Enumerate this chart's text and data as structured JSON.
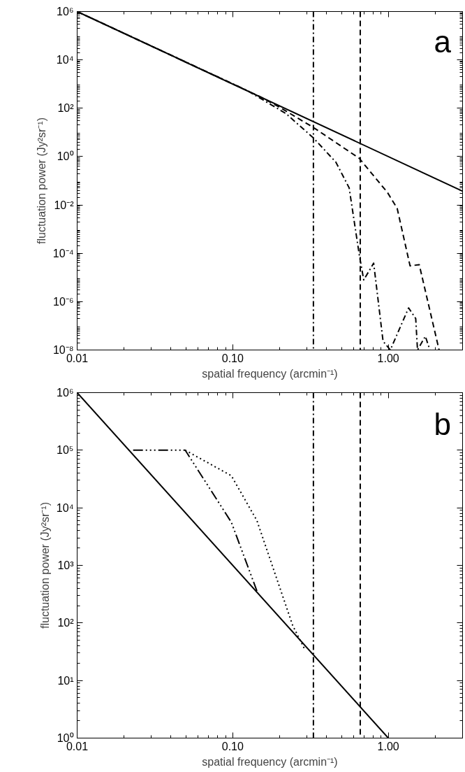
{
  "chart_data": [
    {
      "type": "line",
      "xlabel": "spatial frequency (arcmin⁻¹)",
      "ylabel": "fluctuation power (Jy²sr⁻¹)",
      "annotations": [
        "a"
      ],
      "log": "xy",
      "grid": false,
      "xlim": [
        0.01,
        3
      ],
      "ylim": [
        1e-08,
        1000000.0
      ],
      "xticks": [
        {
          "value": 0.01,
          "label": "0.01"
        },
        {
          "value": 0.1,
          "label": "0.10"
        },
        {
          "value": 1,
          "label": "1.00"
        }
      ],
      "yticks": [
        {
          "value": 1e-08,
          "label": "10⁻⁸"
        },
        {
          "value": 1e-06,
          "label": "10⁻⁶"
        },
        {
          "value": 0.0001,
          "label": "10⁻⁴"
        },
        {
          "value": 0.01,
          "label": "10⁻²"
        },
        {
          "value": 1,
          "label": "10⁰"
        },
        {
          "value": 100,
          "label": "10²"
        },
        {
          "value": 10000,
          "label": "10⁴"
        },
        {
          "value": 1000000,
          "label": "10⁶"
        }
      ],
      "ref_lines": [
        {
          "axis": "x",
          "value": 0.33,
          "color": "#000000",
          "line_style": "dashdot"
        },
        {
          "axis": "x",
          "value": 0.66,
          "color": "#000000",
          "line_style": "dashed"
        }
      ],
      "series": [
        {
          "color": "#000000",
          "line_style": "solid",
          "x": [
            0.01,
            3
          ],
          "values": [
            1000000,
            0.037
          ]
        },
        {
          "color": "#000000",
          "line_style": "dashed",
          "x": [
            0.01,
            0.15,
            0.2,
            0.33,
            0.65,
            0.99,
            1.14,
            1.38,
            1.58,
            2.12
          ],
          "values": [
            1000000,
            300,
            110,
            16,
            0.85,
            0.032,
            0.0072,
            3e-05,
            3.4e-05,
            1e-08
          ]
        },
        {
          "color": "#000000",
          "line_style": "dashdot",
          "x": [
            0.01,
            0.124,
            0.22,
            0.33,
            0.46,
            0.56,
            0.65,
            0.695,
            0.805,
            0.925,
            1.03,
            1.35,
            1.5,
            1.54,
            1.73,
            1.85
          ],
          "values": [
            1000000,
            540,
            60,
            5.9,
            0.59,
            0.051,
            9e-05,
            7.9e-06,
            3.9e-05,
            2.3e-08,
            1e-08,
            5.5e-07,
            2e-07,
            1e-08,
            3.7e-08,
            1e-08
          ]
        }
      ]
    },
    {
      "type": "line",
      "xlabel": "spatial frequency (arcmin⁻¹)",
      "ylabel": "fluctuation power (Jy²sr⁻¹)",
      "annotations": [
        "b"
      ],
      "log": "xy",
      "grid": false,
      "xlim": [
        0.01,
        3
      ],
      "ylim": [
        1,
        1000000.0
      ],
      "xticks": [
        {
          "value": 0.01,
          "label": "0.01"
        },
        {
          "value": 0.1,
          "label": "0.10"
        },
        {
          "value": 1,
          "label": "1.00"
        }
      ],
      "yticks": [
        {
          "value": 1,
          "label": "10⁰"
        },
        {
          "value": 10,
          "label": "10¹"
        },
        {
          "value": 100,
          "label": "10²"
        },
        {
          "value": 1000,
          "label": "10³"
        },
        {
          "value": 10000,
          "label": "10⁴"
        },
        {
          "value": 100000,
          "label": "10⁵"
        },
        {
          "value": 1000000,
          "label": "10⁶"
        }
      ],
      "ref_lines": [
        {
          "axis": "x",
          "value": 0.33,
          "color": "#000000",
          "line_style": "dashdot"
        },
        {
          "axis": "x",
          "value": 0.66,
          "color": "#000000",
          "line_style": "dashed"
        }
      ],
      "series": [
        {
          "color": "#000000",
          "line_style": "solid",
          "x": [
            0.01,
            1
          ],
          "values": [
            1000000,
            1
          ]
        },
        {
          "color": "#000000",
          "line_style": "dashdotdotdot",
          "x": [
            0.0229,
            0.0495,
            0.098,
            0.143
          ],
          "values": [
            100000,
            100000,
            5600,
            360
          ]
        },
        {
          "color": "#000000",
          "line_style": "dotted",
          "x": [
            0.0495,
            0.098,
            0.143,
            0.243,
            0.29
          ],
          "values": [
            100000,
            36000,
            6000,
            90,
            35
          ]
        }
      ]
    }
  ]
}
